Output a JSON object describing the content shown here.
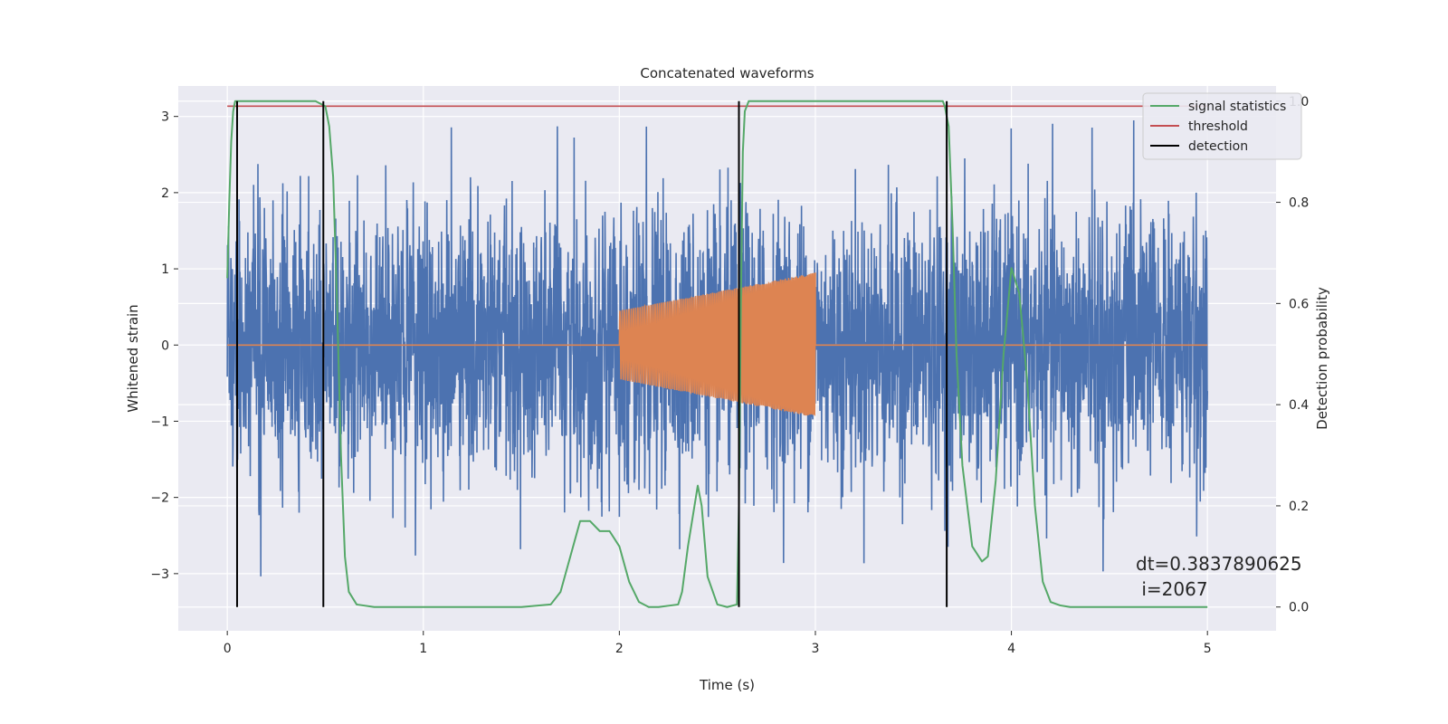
{
  "chart_data": {
    "type": "line",
    "title": "Concatenated waveforms",
    "xlabel": "Time (s)",
    "ylabel": "Whitened strain",
    "y2label": "Detection probability",
    "xlim": [
      -0.25,
      5.35
    ],
    "ylim": [
      -3.75,
      3.4
    ],
    "y2lim": [
      -0.047,
      1.03
    ],
    "xticks": [
      0,
      1,
      2,
      3,
      4,
      5
    ],
    "yticks": [
      -3,
      -2,
      -1,
      0,
      1,
      2,
      3
    ],
    "y2ticks": [
      0.0,
      0.2,
      0.4,
      0.6,
      0.8,
      1.0
    ],
    "xtick_labels": [
      "0",
      "1",
      "2",
      "3",
      "4",
      "5"
    ],
    "ytick_labels": [
      "−3",
      "−2",
      "−1",
      "0",
      "1",
      "2",
      "3"
    ],
    "y2tick_labels": [
      "0.0",
      "0.2",
      "0.4",
      "0.6",
      "0.8",
      "1.0"
    ],
    "grid": true,
    "legend_position": "top-right",
    "colors": {
      "noise": "#4c72b0",
      "waveform": "#dd8452",
      "signal": "#55a868",
      "threshold": "#c44e52",
      "detection": "#000000",
      "background": "#eaeaf2",
      "grid": "#ffffff"
    },
    "noise": {
      "t_range": [
        0,
        5
      ],
      "samples": 4096,
      "typical_amplitude": 1.0,
      "max_amplitude": 3.0
    },
    "waveform": {
      "t_start": 2.0,
      "t_end": 3.0,
      "amplitude_start": 0.45,
      "amplitude_end": 0.95,
      "cycles": 85
    },
    "series": [
      {
        "name": "signal statistics",
        "axis": "right",
        "x": [
          0,
          0.01,
          0.02,
          0.03,
          0.04,
          0.06,
          0.1,
          0.2,
          0.3,
          0.45,
          0.5,
          0.52,
          0.54,
          0.56,
          0.58,
          0.6,
          0.62,
          0.66,
          0.75,
          1.0,
          1.5,
          1.65,
          1.7,
          1.75,
          1.8,
          1.85,
          1.9,
          1.95,
          2.0,
          2.05,
          2.1,
          2.15,
          2.2,
          2.3,
          2.32,
          2.35,
          2.4,
          2.42,
          2.45,
          2.5,
          2.55,
          2.6,
          2.61,
          2.62,
          2.63,
          2.64,
          2.66,
          2.7,
          3.0,
          3.5,
          3.65,
          3.66,
          3.68,
          3.7,
          3.72,
          3.75,
          3.8,
          3.85,
          3.88,
          3.92,
          3.96,
          4.0,
          4.04,
          4.08,
          4.12,
          4.16,
          4.2,
          4.25,
          4.3,
          4.5,
          5.0
        ],
        "y": [
          0.65,
          0.8,
          0.92,
          0.98,
          1.0,
          1.0,
          1.0,
          1.0,
          1.0,
          1.0,
          0.99,
          0.95,
          0.85,
          0.6,
          0.3,
          0.1,
          0.03,
          0.005,
          0.0,
          0.0,
          0.0,
          0.005,
          0.03,
          0.1,
          0.17,
          0.17,
          0.15,
          0.15,
          0.12,
          0.05,
          0.01,
          0.0,
          0.0,
          0.005,
          0.03,
          0.12,
          0.24,
          0.2,
          0.06,
          0.005,
          0.0,
          0.005,
          0.2,
          0.6,
          0.9,
          0.98,
          1.0,
          1.0,
          1.0,
          1.0,
          1.0,
          0.99,
          0.95,
          0.75,
          0.5,
          0.28,
          0.12,
          0.09,
          0.1,
          0.25,
          0.5,
          0.67,
          0.62,
          0.45,
          0.2,
          0.05,
          0.01,
          0.003,
          0.0,
          0.0,
          0.0
        ]
      },
      {
        "name": "threshold",
        "axis": "right",
        "x": [
          0,
          5
        ],
        "y": [
          0.99,
          0.99
        ]
      },
      {
        "name": "detection",
        "axis": "right",
        "vlines": [
          0.05,
          0.49,
          2.61,
          3.67
        ],
        "ymin": 0.0,
        "ymax": 1.0
      }
    ],
    "annotations": [
      {
        "text": "dt=0.3837890625",
        "x": 4.5,
        "y": 0.1
      },
      {
        "text": " i=2067",
        "x": 4.5,
        "y": 0.05
      }
    ]
  }
}
